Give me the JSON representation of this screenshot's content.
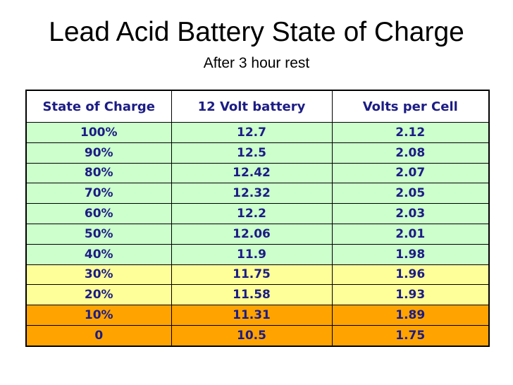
{
  "title": "Lead Acid Battery State of Charge",
  "subtitle": "After 3 hour rest",
  "table": {
    "columns": [
      "State of Charge",
      "12 Volt battery",
      "Volts per Cell"
    ],
    "rows": [
      {
        "cells": [
          "100%",
          "12.7",
          "2.12"
        ],
        "band": "green"
      },
      {
        "cells": [
          "90%",
          "12.5",
          "2.08"
        ],
        "band": "green"
      },
      {
        "cells": [
          "80%",
          "12.42",
          "2.07"
        ],
        "band": "green"
      },
      {
        "cells": [
          "70%",
          "12.32",
          "2.05"
        ],
        "band": "green"
      },
      {
        "cells": [
          "60%",
          "12.2",
          "2.03"
        ],
        "band": "green"
      },
      {
        "cells": [
          "50%",
          "12.06",
          "2.01"
        ],
        "band": "green"
      },
      {
        "cells": [
          "40%",
          "11.9",
          "1.98"
        ],
        "band": "green"
      },
      {
        "cells": [
          "30%",
          "11.75",
          "1.96"
        ],
        "band": "yellow"
      },
      {
        "cells": [
          "20%",
          "11.58",
          "1.93"
        ],
        "band": "yellow"
      },
      {
        "cells": [
          "10%",
          "11.31",
          "1.89"
        ],
        "band": "orange"
      },
      {
        "cells": [
          "0",
          "10.5",
          "1.75"
        ],
        "band": "orange"
      }
    ],
    "colors": {
      "header_bg": "#ffffff",
      "green": "#ccffcc",
      "yellow": "#ffff99",
      "orange": "#ffa300",
      "text": "#1c1c85",
      "border": "#000000"
    }
  },
  "chart_data": {
    "type": "table",
    "title": "Lead Acid Battery State of Charge",
    "subtitle": "After 3 hour rest",
    "columns": [
      "State of Charge",
      "12 Volt battery",
      "Volts per Cell"
    ],
    "state_of_charge": [
      "100%",
      "90%",
      "80%",
      "70%",
      "60%",
      "50%",
      "40%",
      "30%",
      "20%",
      "10%",
      "0"
    ],
    "volts_12v_battery": [
      12.7,
      12.5,
      12.42,
      12.32,
      12.2,
      12.06,
      11.9,
      11.75,
      11.58,
      11.31,
      10.5
    ],
    "volts_per_cell": [
      2.12,
      2.08,
      2.07,
      2.05,
      2.03,
      2.01,
      1.98,
      1.96,
      1.93,
      1.89,
      1.75
    ]
  }
}
